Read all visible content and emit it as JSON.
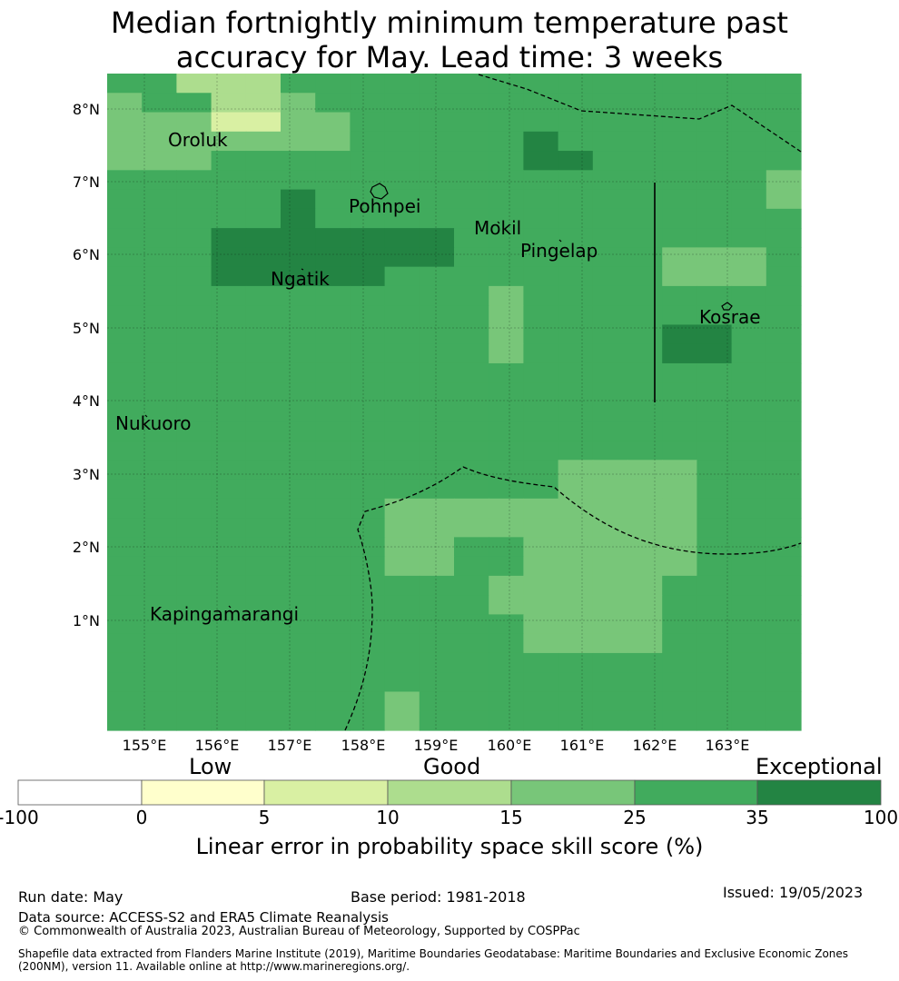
{
  "title": {
    "line1": "Median fortnightly minimum temperature past",
    "line2": "accuracy for May. Lead time: 3 weeks"
  },
  "map": {
    "lon_ticks": [
      "155°E",
      "156°E",
      "157°E",
      "158°E",
      "159°E",
      "160°E",
      "161°E",
      "162°E",
      "163°E"
    ],
    "lat_ticks": [
      "8°N",
      "7°N",
      "6°N",
      "5°N",
      "4°N",
      "3°N",
      "2°N",
      "1°N"
    ],
    "places": {
      "oroluk": "Oroluk",
      "pohnpei": "Pohnpei",
      "mokil": "Mokil",
      "pingelap": "Pingelap",
      "ngatik": "Ngatik",
      "kosrae": "Kosrae",
      "nukuoro": "Nukuoro",
      "kapingamarangi": "Kapingamarangi"
    },
    "colors": {
      "c1": "#ffffcc",
      "c2": "#d9f0a3",
      "c3": "#addd8e",
      "c4": "#78c679",
      "c5": "#41ab5d",
      "c6": "#238443"
    },
    "grid_rows": [
      "55333555555555555555",
      "45533455555555555555",
      "44422445555555555555",
      "44444445555565555555",
      "44455555555566555555",
      "55555555555555555554",
      "55555655555555555554",
      "55555655555555555555",
      "55566666665555555555",
      "55566666665555554445",
      "55566666555555554445",
      "55555555555455555555",
      "55555555555455555555",
      "55555555555455556655",
      "55555555555455556655",
      "55555555555555555555",
      "55555555555555555555",
      "55555555555555555555",
      "55555555555555555555",
      "55555555555555555555",
      "55555555555554444555",
      "55555555555554444555",
      "55555555444444444555",
      "55555555444444444555",
      "55555555445544444555",
      "55555555445544444555",
      "55555555555444445555",
      "55555555555444445555",
      "55555555555544445555",
      "55555555555544445555",
      "55555555555555555555",
      "55555555555555555555",
      "55555555455555555555",
      "55555555455555555555"
    ]
  },
  "colorbar": {
    "categories": [
      "Low",
      "Good",
      "Exceptional"
    ],
    "ticks": [
      "-100",
      "0",
      "5",
      "10",
      "15",
      "25",
      "35",
      "100"
    ],
    "colors": [
      "#ffffff",
      "#ffffcc",
      "#d9f0a3",
      "#addd8e",
      "#78c679",
      "#41ab5d",
      "#238443"
    ],
    "label": "Linear error in probability space skill score (%)"
  },
  "footer": {
    "run_date": "Run date: May",
    "base_period": "Base period: 1981-2018",
    "issued": "Issued: 19/05/2023",
    "data_source": "Data source: ACCESS-S2 and ERA5 Climate Reanalysis",
    "copyright": "© Commonwealth of Australia 2023, Australian Bureau of Meteorology, Supported by COSPPac",
    "shapefile1": "Shapefile data extracted from Flanders Marine Institute (2019), Maritime Boundaries Geodatabase: Maritime Boundaries and Exclusive Economic Zones",
    "shapefile2": "(200NM), version 11. Available online at http://www.marineregions.org/."
  }
}
